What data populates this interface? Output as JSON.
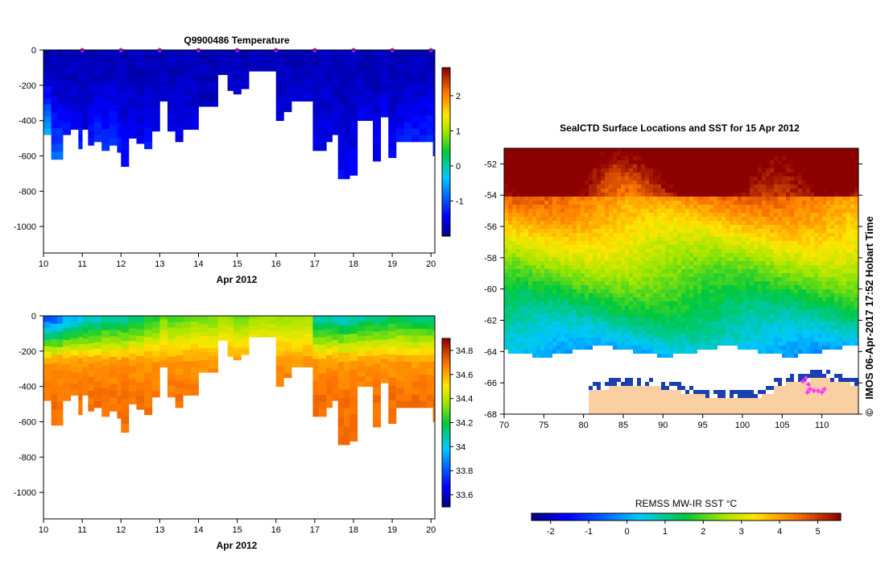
{
  "chart_data": [
    {
      "type": "heatmap",
      "title": "Q9900486  Temperature",
      "xlabel": "Apr 2012",
      "ylabel": "",
      "xlim": [
        10,
        20.1
      ],
      "ylim": [
        -1150,
        0
      ],
      "x_ticks": [
        "10",
        "11",
        "12",
        "13",
        "14",
        "15",
        "16",
        "17",
        "18",
        "19",
        "20"
      ],
      "y_ticks": [
        "0",
        "-200",
        "-400",
        "-600",
        "-800",
        "-1000"
      ],
      "colorbar": {
        "range": [
          -2,
          2.8
        ],
        "ticks": [
          "2",
          "1",
          "0",
          "-1"
        ]
      },
      "profile_markers_x": [
        11,
        12,
        13,
        14,
        15,
        16,
        17,
        18,
        19,
        20
      ],
      "profiles": {
        "x": [
          10,
          10.2,
          10.35,
          10.5,
          10.7,
          10.9,
          11,
          11.15,
          11.3,
          11.5,
          11.7,
          11.9,
          12,
          12.2,
          12.4,
          12.6,
          12.8,
          13,
          13.2,
          13.4,
          13.6,
          13.8,
          14,
          14.25,
          14.5,
          14.75,
          14.9,
          15.1,
          15.3,
          15.55,
          15.8,
          16,
          16.2,
          16.4,
          16.7,
          16.95,
          17.1,
          17.3,
          17.45,
          17.6,
          17.75,
          17.9,
          18.1,
          18.3,
          18.5,
          18.7,
          18.9,
          19.1,
          19.3,
          19.5,
          19.7,
          19.9,
          20.05
        ],
        "max_depth": [
          480,
          620,
          620,
          480,
          450,
          560,
          450,
          540,
          520,
          570,
          540,
          580,
          660,
          500,
          530,
          560,
          460,
          290,
          460,
          520,
          450,
          450,
          320,
          320,
          140,
          230,
          250,
          220,
          120,
          120,
          120,
          400,
          350,
          290,
          290,
          570,
          570,
          520,
          480,
          730,
          730,
          710,
          400,
          400,
          630,
          380,
          610,
          520,
          520,
          520,
          520,
          520,
          600
        ],
        "deep_temp": [
          -0.3,
          -0.8,
          -0.8,
          -1.3,
          -1.4,
          -1.2,
          -1.6,
          -1.2,
          -1.1,
          -1.0,
          -1.0,
          -1.2,
          -1.3,
          -1.4,
          -1.5,
          -1.3,
          -1.5,
          -1.6,
          -1.5,
          -1.5,
          -1.5,
          -1.5,
          -1.7,
          -1.7,
          -1.7,
          -1.6,
          -1.6,
          -1.6,
          -1.7,
          -1.7,
          -1.7,
          -1.6,
          -1.6,
          -1.6,
          -1.6,
          -1.5,
          -1.5,
          -1.5,
          -1.5,
          -1.4,
          -1.4,
          -1.4,
          -1.5,
          -1.5,
          -1.4,
          -1.4,
          -1.4,
          -1.3,
          -1.2,
          -1.2,
          -1.2,
          -1.1,
          -1.2
        ]
      }
    },
    {
      "type": "heatmap",
      "title": "",
      "xlabel": "Apr 2012",
      "ylabel": "",
      "xlim": [
        10,
        20.1
      ],
      "ylim": [
        -1150,
        0
      ],
      "x_ticks": [
        "10",
        "11",
        "12",
        "13",
        "14",
        "15",
        "16",
        "17",
        "18",
        "19",
        "20"
      ],
      "y_ticks": [
        "0",
        "-200",
        "-400",
        "-600",
        "-800",
        "-1000"
      ],
      "colorbar": {
        "range": [
          33.5,
          34.9
        ],
        "ticks": [
          "34.8",
          "34.6",
          "34.4",
          "34.2",
          "34",
          "33.8",
          "33.6"
        ]
      },
      "surface_salinity": [
        33.75,
        33.75,
        33.8,
        33.9,
        33.9,
        33.95,
        34.0,
        34.0,
        34.0,
        34.05,
        34.05,
        34.05,
        34.05,
        34.1,
        34.1,
        34.2,
        34.2,
        34.3,
        34.25,
        34.25,
        34.3,
        34.3,
        34.3,
        34.3,
        34.35,
        34.35,
        34.3,
        34.3,
        34.35,
        34.35,
        34.35,
        34.35,
        34.35,
        34.35,
        34.35,
        34.05,
        34.05,
        34.05,
        34.0,
        34.0,
        34.0,
        34.05,
        34.05,
        34.1,
        34.1,
        34.1,
        34.15,
        34.15,
        34.1,
        34.1,
        34.1,
        34.1,
        34.1
      ]
    },
    {
      "type": "heatmap",
      "title": "SealCTD Surface Locations and SST for 15 Apr 2012",
      "xlabel": "",
      "ylabel": "",
      "xlim": [
        70,
        114.6
      ],
      "ylim": [
        -68,
        -51
      ],
      "x_ticks": [
        "70",
        "75",
        "80",
        "85",
        "90",
        "95",
        "100",
        "105",
        "110"
      ],
      "y_ticks": [
        "-52",
        "-54",
        "-56",
        "-58",
        "-60",
        "-62",
        "-64",
        "-66",
        "-68"
      ],
      "colorbar": {
        "label": "REMSS MW-IR SST °C",
        "range": [
          -2.5,
          5.6
        ],
        "ticks": [
          "-2",
          "-1",
          "0",
          "1",
          "2",
          "3",
          "4",
          "5"
        ]
      },
      "seal_locations": [
        {
          "lon": 107.6,
          "lat": -65.9
        },
        {
          "lon": 108.0,
          "lat": -65.7
        },
        {
          "lon": 108.3,
          "lat": -66.1
        },
        {
          "lon": 108.5,
          "lat": -66.4
        },
        {
          "lon": 109.0,
          "lat": -66.5
        },
        {
          "lon": 109.5,
          "lat": -66.5
        },
        {
          "lon": 110.0,
          "lat": -66.6
        },
        {
          "lon": 110.3,
          "lat": -66.4
        },
        {
          "lon": 108.2,
          "lat": -66.6
        }
      ]
    }
  ],
  "side_text": "IMOS 06-Apr-2017 17:52 Hobart Time",
  "copyright": "©",
  "colors": {
    "background": "#ffffff",
    "land": "#fad0a3",
    "seal_marker": "#ff33ff",
    "profile_marker": "#cc33cc"
  }
}
